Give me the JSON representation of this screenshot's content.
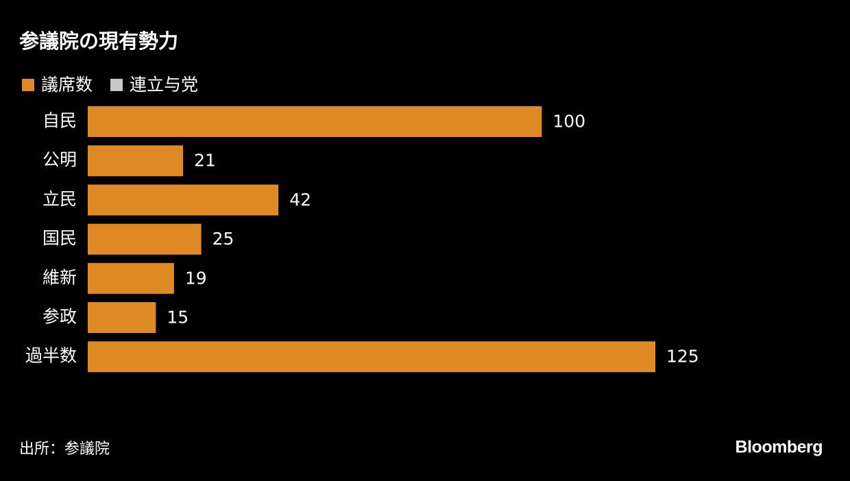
{
  "chart_data": {
    "type": "barh",
    "title": "参議院の現有勢力",
    "categories": [
      "自民",
      "公明",
      "立民",
      "国民",
      "維新",
      "参政",
      "過半数"
    ],
    "series": [
      {
        "name": "議席数",
        "color": "#df8a24",
        "values": [
          100,
          21,
          42,
          25,
          19,
          15,
          125
        ]
      },
      {
        "name": "連立与党",
        "color": "#c8c8c8",
        "values": [
          null,
          null,
          null,
          null,
          null,
          null,
          null
        ]
      }
    ],
    "source": "出所：参議院",
    "brand": "Bloomberg"
  }
}
